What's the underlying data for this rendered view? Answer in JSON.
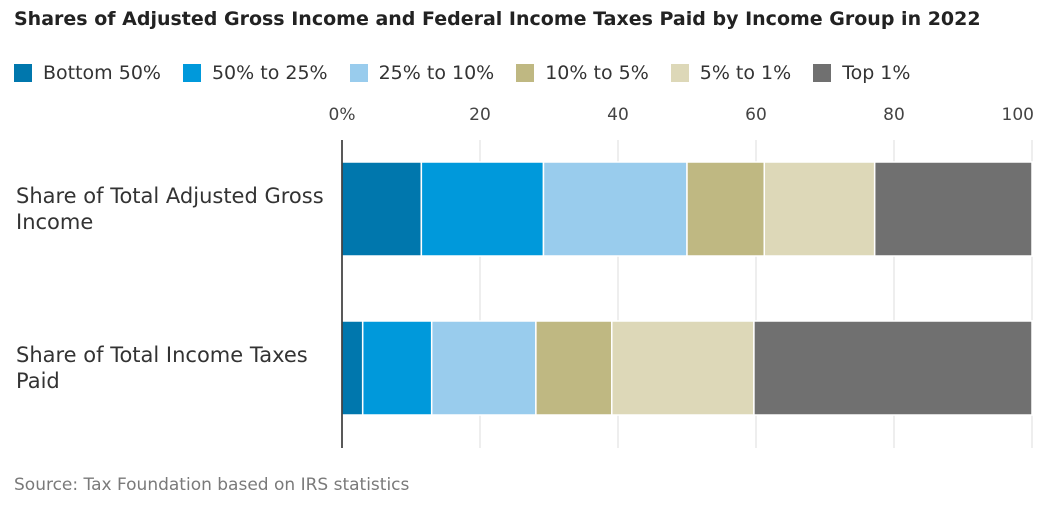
{
  "title": "Shares of Adjusted Gross Income and Federal Income Taxes Paid by Income Group in 2022",
  "source": "Source: Tax Foundation based on IRS statistics",
  "legend": [
    {
      "label": "Bottom 50%",
      "color": "#0077ad"
    },
    {
      "label": "50% to 25%",
      "color": "#0099db"
    },
    {
      "label": "25% to 10%",
      "color": "#99cced"
    },
    {
      "label": "10% to 5%",
      "color": "#bfb882"
    },
    {
      "label": "5% to 1%",
      "color": "#ddd8b8"
    },
    {
      "label": "Top 1%",
      "color": "#707070"
    }
  ],
  "chart_data": {
    "type": "bar",
    "orientation": "horizontal",
    "stacked": true,
    "title": "Shares of Adjusted Gross Income and Federal Income Taxes Paid by Income Group in 2022",
    "categories": [
      [
        "Share of Total Adjusted Gross",
        "Income"
      ],
      [
        "Share of Total Income Taxes",
        "Paid"
      ]
    ],
    "xlim": [
      0,
      100
    ],
    "ticks": [
      0,
      20,
      40,
      60,
      80,
      100
    ],
    "tick_labels": [
      "0%",
      "20",
      "40",
      "60",
      "80",
      "100"
    ],
    "grid": true,
    "legend_position": "top-left",
    "series": [
      {
        "name": "Bottom 50%",
        "color": "#0077ad",
        "values": [
          11.5,
          3.0
        ]
      },
      {
        "name": "50% to 25%",
        "color": "#0099db",
        "values": [
          17.7,
          10.0
        ]
      },
      {
        "name": "25% to 10%",
        "color": "#99cced",
        "values": [
          20.8,
          15.1
        ]
      },
      {
        "name": "10% to 5%",
        "color": "#bfb882",
        "values": [
          11.2,
          11.0
        ]
      },
      {
        "name": "5% to 1%",
        "color": "#ddd8b8",
        "values": [
          16.0,
          20.6
        ]
      },
      {
        "name": "Top 1%",
        "color": "#707070",
        "values": [
          22.8,
          40.3
        ]
      }
    ]
  }
}
